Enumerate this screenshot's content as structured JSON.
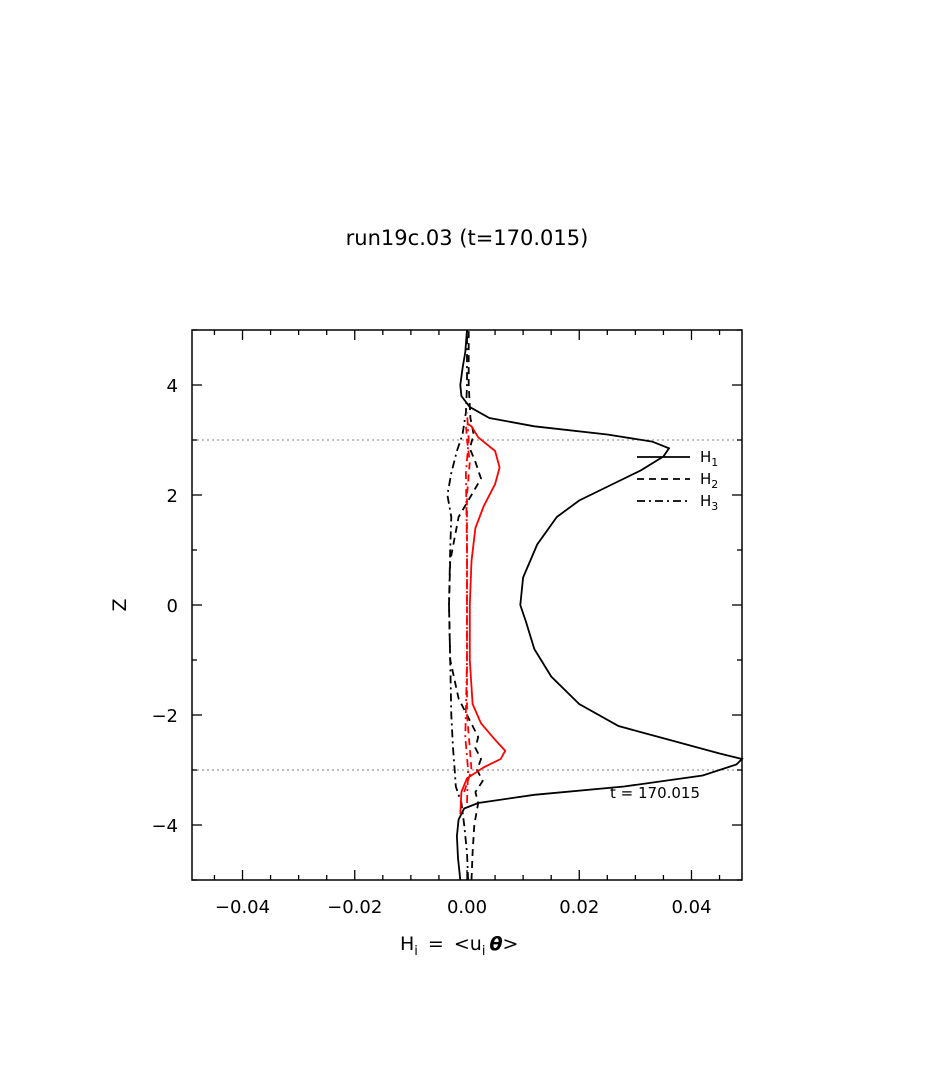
{
  "chart_data": {
    "type": "line",
    "title": "run19c.03 (t=170.015)",
    "xlabel": "H",
    "xlabel_sub": "i",
    "xlabel_eq": "=",
    "xlabel_rhs": "<u",
    "xlabel_rhs_sub": "i",
    "xlabel_rhs_theta": "θ",
    "xlabel_rhs_close": ">",
    "ylabel": "Z",
    "xlim": [
      -0.049,
      0.049
    ],
    "ylim": [
      -5,
      5
    ],
    "xticks": [
      {
        "value": -0.04,
        "label": "−0.04"
      },
      {
        "value": -0.02,
        "label": "−0.02"
      },
      {
        "value": 0.0,
        "label": "0.00"
      },
      {
        "value": 0.02,
        "label": "0.02"
      },
      {
        "value": 0.04,
        "label": "0.04"
      }
    ],
    "yticks": [
      {
        "value": -4,
        "label": "−4"
      },
      {
        "value": -2,
        "label": "−2"
      },
      {
        "value": 0,
        "label": "0"
      },
      {
        "value": 2,
        "label": "2"
      },
      {
        "value": 4,
        "label": "4"
      }
    ],
    "reference_lines_y": [
      3,
      -3
    ],
    "annotation": "t  =  170.015",
    "legend_placement": "upper-right inside",
    "legend": [
      {
        "label": "H",
        "sub": "1",
        "style": "solid"
      },
      {
        "label": "H",
        "sub": "2",
        "style": "dashed"
      },
      {
        "label": "H",
        "sub": "3",
        "style": "dashdot"
      }
    ],
    "series": [
      {
        "style": "solid",
        "color": "#000000",
        "points": [
          [
            -0.0012,
            -5.0
          ],
          [
            -0.0016,
            -4.6
          ],
          [
            -0.0018,
            -4.2
          ],
          [
            -0.0015,
            -3.9
          ],
          [
            -0.0005,
            -3.7
          ],
          [
            0.002,
            -3.6
          ],
          [
            0.012,
            -3.45
          ],
          [
            0.028,
            -3.3
          ],
          [
            0.042,
            -3.1
          ],
          [
            0.048,
            -2.9
          ],
          [
            0.049,
            -2.8
          ],
          [
            0.045,
            -2.7
          ],
          [
            0.036,
            -2.45
          ],
          [
            0.027,
            -2.2
          ],
          [
            0.02,
            -1.8
          ],
          [
            0.015,
            -1.3
          ],
          [
            0.012,
            -0.8
          ],
          [
            0.0105,
            -0.3
          ],
          [
            0.0095,
            0.0
          ],
          [
            0.01,
            0.5
          ],
          [
            0.0125,
            1.1
          ],
          [
            0.016,
            1.6
          ],
          [
            0.02,
            1.9
          ],
          [
            0.026,
            2.2
          ],
          [
            0.031,
            2.45
          ],
          [
            0.035,
            2.7
          ],
          [
            0.036,
            2.85
          ],
          [
            0.033,
            2.97
          ],
          [
            0.025,
            3.1
          ],
          [
            0.012,
            3.25
          ],
          [
            0.004,
            3.4
          ],
          [
            0.0005,
            3.6
          ],
          [
            -0.001,
            3.8
          ],
          [
            -0.0012,
            4.0
          ],
          [
            -0.0008,
            4.3
          ],
          [
            -0.0003,
            4.6
          ],
          [
            0.0,
            5.0
          ]
        ]
      },
      {
        "style": "dashed",
        "color": "#000000",
        "points": [
          [
            0.0008,
            -5.0
          ],
          [
            0.001,
            -4.5
          ],
          [
            0.0013,
            -4.0
          ],
          [
            0.002,
            -3.6
          ],
          [
            0.0015,
            -3.4
          ],
          [
            0.0028,
            -3.2
          ],
          [
            0.0018,
            -3.0
          ],
          [
            0.0025,
            -2.8
          ],
          [
            0.0015,
            -2.6
          ],
          [
            0.002,
            -2.4
          ],
          [
            0.0005,
            -2.1
          ],
          [
            -0.0015,
            -1.7
          ],
          [
            -0.003,
            -1.0
          ],
          [
            -0.0032,
            0.0
          ],
          [
            -0.003,
            0.8
          ],
          [
            -0.0015,
            1.6
          ],
          [
            0.0008,
            2.0
          ],
          [
            0.0025,
            2.3
          ],
          [
            0.0015,
            2.6
          ],
          [
            0.0005,
            2.85
          ],
          [
            0.0012,
            3.1
          ],
          [
            0.0006,
            3.4
          ],
          [
            0.0003,
            4.0
          ],
          [
            0.0003,
            5.0
          ]
        ]
      },
      {
        "style": "dashdot",
        "color": "#000000",
        "points": [
          [
            0.0002,
            -5.0
          ],
          [
            0.0,
            -4.5
          ],
          [
            -0.0005,
            -4.0
          ],
          [
            -0.001,
            -3.6
          ],
          [
            -0.002,
            -3.3
          ],
          [
            -0.0022,
            -3.0
          ],
          [
            -0.0025,
            -2.6
          ],
          [
            -0.0028,
            -2.0
          ],
          [
            -0.003,
            -1.0
          ],
          [
            -0.0032,
            0.0
          ],
          [
            -0.003,
            1.0
          ],
          [
            -0.0028,
            1.6
          ],
          [
            -0.0035,
            2.0
          ],
          [
            -0.0028,
            2.4
          ],
          [
            -0.0018,
            2.8
          ],
          [
            -0.0008,
            3.1
          ],
          [
            -0.0002,
            3.5
          ],
          [
            0.0,
            4.0
          ],
          [
            0.0,
            5.0
          ]
        ]
      },
      {
        "style": "solid",
        "color": "#ff0000",
        "points": [
          [
            -0.0012,
            -3.8
          ],
          [
            -0.001,
            -3.4
          ],
          [
            0.0,
            -3.15
          ],
          [
            0.003,
            -2.95
          ],
          [
            0.006,
            -2.8
          ],
          [
            0.0068,
            -2.65
          ],
          [
            0.005,
            -2.45
          ],
          [
            0.0025,
            -2.15
          ],
          [
            0.001,
            -1.8
          ],
          [
            0.0005,
            -1.0
          ],
          [
            0.0005,
            0.0
          ],
          [
            0.0008,
            0.8
          ],
          [
            0.0015,
            1.4
          ],
          [
            0.003,
            1.8
          ],
          [
            0.005,
            2.2
          ],
          [
            0.0058,
            2.5
          ],
          [
            0.005,
            2.8
          ],
          [
            0.002,
            3.05
          ],
          [
            0.0008,
            3.25
          ],
          [
            0.0,
            3.3
          ]
        ]
      },
      {
        "style": "dashed",
        "color": "#ff0000",
        "points": [
          [
            -0.0005,
            -3.4
          ],
          [
            0.0008,
            -3.0
          ],
          [
            0.0005,
            -2.6
          ],
          [
            0.0,
            -2.0
          ],
          [
            0.0,
            0.0
          ],
          [
            0.0,
            2.0
          ],
          [
            0.0005,
            2.6
          ],
          [
            0.0,
            3.0
          ],
          [
            -0.0002,
            3.3
          ]
        ]
      },
      {
        "style": "dashdot",
        "color": "#ff0000",
        "points": [
          [
            0.0,
            -3.6
          ],
          [
            0.0002,
            -3.0
          ],
          [
            -0.0003,
            -2.4
          ],
          [
            0.0,
            -1.0
          ],
          [
            0.0,
            1.0
          ],
          [
            -0.0002,
            2.4
          ],
          [
            0.0003,
            3.0
          ],
          [
            0.0,
            3.5
          ]
        ]
      }
    ]
  }
}
